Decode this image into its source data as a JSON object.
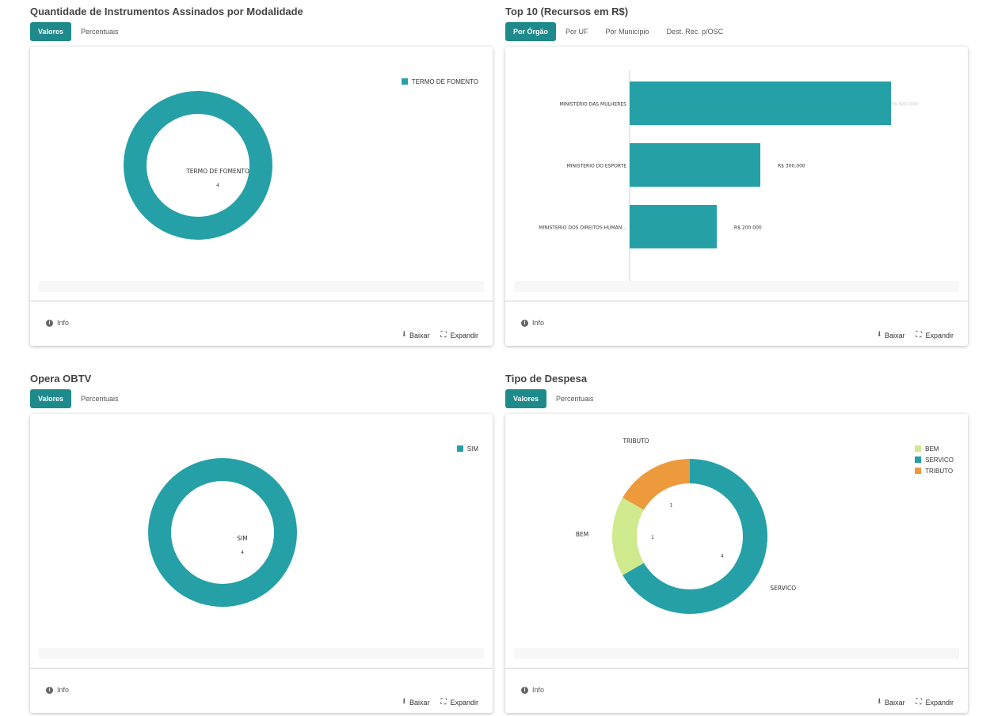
{
  "panels": {
    "modalidade": {
      "title": "Quantidade de Instrumentos Assinados por Modalidade",
      "tabs": [
        "Valores",
        "Percentuais"
      ],
      "active_tab": 0
    },
    "top10": {
      "title": "Top 10 (Recursos em R$)",
      "tabs": [
        "Por Órgão",
        "Por UF",
        "Por Município",
        "Dest. Rec. p/OSC"
      ],
      "active_tab": 0
    },
    "obtv": {
      "title": "Opera OBTV",
      "tabs": [
        "Valores",
        "Percentuais"
      ],
      "active_tab": 0
    },
    "despesa": {
      "title": "Tipo de Despesa",
      "tabs": [
        "Valores",
        "Percentuais"
      ],
      "active_tab": 0
    }
  },
  "footer": {
    "info": "Info",
    "download": "Baixar",
    "expand": "Expandir"
  },
  "icons": {
    "info": "info-icon",
    "download": "download-icon",
    "expand": "expand-icon"
  },
  "colors": {
    "accent": "#1f8a8c",
    "teal": "#26a0a7",
    "green": "#cfe98d",
    "orange": "#ec9a3c"
  },
  "chart_data": [
    {
      "type": "pie",
      "donut": true,
      "categories": [
        "TERMO DE FOMENTO"
      ],
      "values": [
        4
      ],
      "legend": "top-right",
      "colors": [
        "#26a0a7"
      ]
    },
    {
      "type": "bar",
      "orientation": "horizontal",
      "categories": [
        "MINISTÉRIO DAS MULHERES",
        "MINISTERIO DO ESPORTE",
        "MINISTERIO DOS DIREITOS HUMAN..."
      ],
      "values": [
        600000,
        300000,
        200000
      ],
      "value_labels": [
        "R$ 600.000",
        "R$ 300.000",
        "R$ 200.000"
      ],
      "colors": [
        "#26a0a7"
      ]
    },
    {
      "type": "pie",
      "donut": true,
      "categories": [
        "SIM"
      ],
      "values": [
        4
      ],
      "legend": "top-right",
      "colors": [
        "#26a0a7"
      ]
    },
    {
      "type": "pie",
      "donut": true,
      "categories": [
        "BEM",
        "SERVICO",
        "TRIBUTO"
      ],
      "values": [
        1,
        4,
        1
      ],
      "legend": "top-right",
      "colors": [
        "#cfe98d",
        "#26a0a7",
        "#ec9a3c"
      ]
    }
  ]
}
